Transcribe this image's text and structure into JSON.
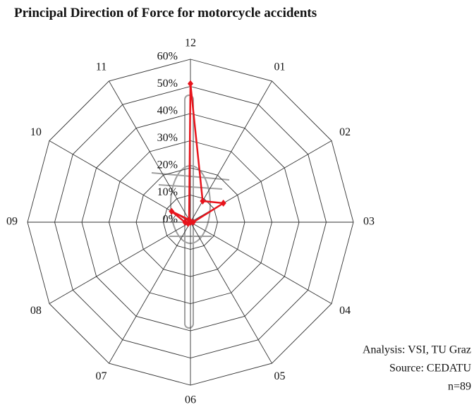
{
  "chart_data": {
    "type": "radar",
    "title": "Principal Direction of Force for motorcycle accidents",
    "categories": [
      "12",
      "01",
      "02",
      "03",
      "04",
      "05",
      "06",
      "07",
      "08",
      "09",
      "10",
      "11"
    ],
    "values": [
      51,
      9,
      14,
      1,
      0,
      0,
      0,
      0,
      1,
      2,
      8,
      1
    ],
    "color": "#e8141c",
    "rlim": [
      0,
      60
    ],
    "rticks": [
      {
        "value": 0,
        "label": "0%"
      },
      {
        "value": 10,
        "label": "10%"
      },
      {
        "value": 20,
        "label": "20%"
      },
      {
        "value": 30,
        "label": "30%"
      },
      {
        "value": 40,
        "label": "40%"
      },
      {
        "value": 50,
        "label": "50%"
      },
      {
        "value": 60,
        "label": "60%"
      }
    ],
    "grid": true,
    "annotations": [
      "Analysis: VSI, TU Graz",
      "Source: CEDATU",
      "n=89"
    ]
  }
}
